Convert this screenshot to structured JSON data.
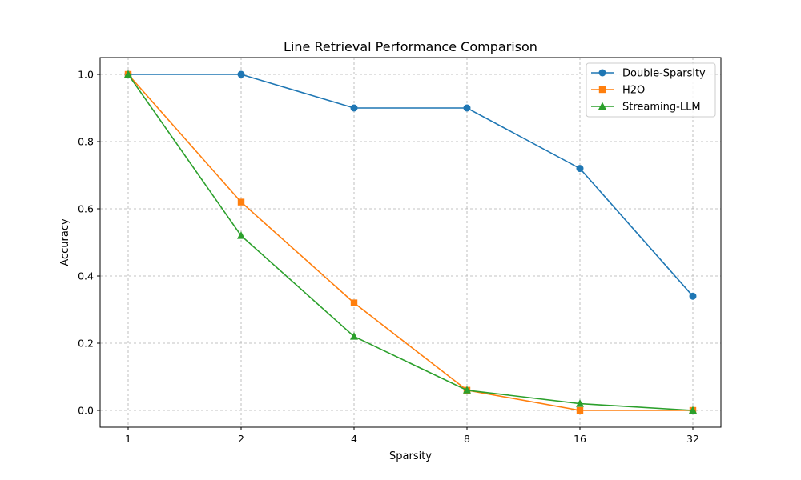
{
  "chart_data": {
    "type": "line",
    "title": "Line Retrieval Performance Comparison",
    "xlabel": "Sparsity",
    "ylabel": "Accuracy",
    "categories": [
      "1",
      "2",
      "4",
      "8",
      "16",
      "32"
    ],
    "y_ticks": [
      "0.0",
      "0.2",
      "0.4",
      "0.6",
      "0.8",
      "1.0"
    ],
    "ylim": [
      -0.05,
      1.05
    ],
    "grid": true,
    "legend_position": "top-right",
    "series": [
      {
        "name": "Double-Sparsity",
        "marker": "circle",
        "color": "#1f77b4",
        "values": [
          1.0,
          1.0,
          0.9,
          0.9,
          0.72,
          0.34
        ]
      },
      {
        "name": "H2O",
        "marker": "square",
        "color": "#ff7f0e",
        "values": [
          1.0,
          0.62,
          0.32,
          0.06,
          0.0,
          0.0
        ]
      },
      {
        "name": "Streaming-LLM",
        "marker": "triangle",
        "color": "#2ca02c",
        "values": [
          1.0,
          0.52,
          0.22,
          0.06,
          0.02,
          0.0
        ]
      }
    ]
  }
}
